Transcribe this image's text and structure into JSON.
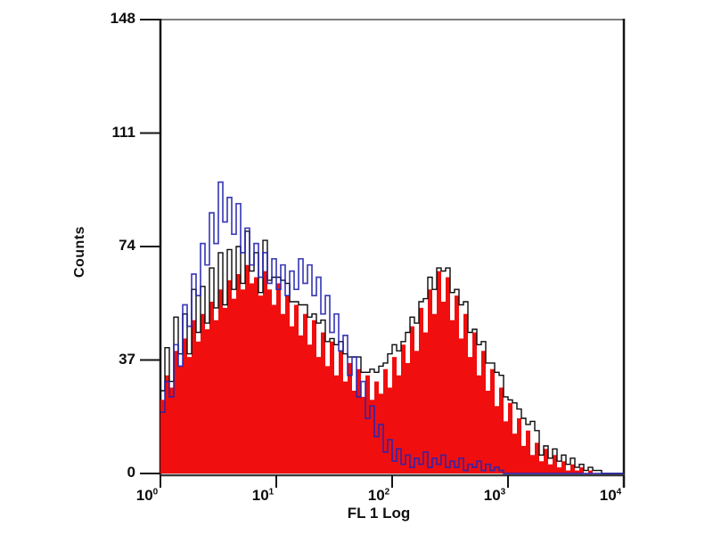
{
  "chart_data": {
    "type": "area",
    "subtype": "flow-cytometry-overlay-histogram",
    "title": "",
    "xlabel": "FL 1 Log",
    "ylabel": "Counts",
    "x_scale": "log10",
    "xlim_log": [
      0,
      4
    ],
    "ylim": [
      0,
      148
    ],
    "grid": false,
    "legend": "none",
    "background": "#ffffff",
    "y_ticks": [
      "0",
      "37",
      "74",
      "111",
      "148"
    ],
    "x_ticks": [
      {
        "base": "10",
        "exp": "0"
      },
      {
        "base": "10",
        "exp": "1"
      },
      {
        "base": "10",
        "exp": "2"
      },
      {
        "base": "10",
        "exp": "3"
      },
      {
        "base": "10",
        "exp": "4"
      }
    ],
    "colors": {
      "red_fill": "#f10e0e",
      "black_outline": "#0a0a0a",
      "blue_outline": "#2626b2",
      "axis": "#141414",
      "frame_top": "#7d7d7d",
      "tick_label": "#0d0d0d"
    },
    "series": [
      {
        "name": "red-filled-histogram",
        "style": "filled-step",
        "color": "#f10e0e",
        "values": [
          24,
          32,
          28,
          40,
          35,
          44,
          38,
          50,
          43,
          52,
          47,
          56,
          50,
          60,
          54,
          63,
          57,
          65,
          60,
          68,
          62,
          64,
          58,
          66,
          60,
          55,
          62,
          52,
          58,
          48,
          55,
          45,
          52,
          42,
          50,
          38,
          46,
          35,
          43,
          32,
          40,
          30,
          36,
          27,
          34,
          25,
          32,
          24,
          30,
          26,
          34,
          28,
          38,
          32,
          42,
          36,
          48,
          40,
          54,
          46,
          60,
          52,
          66,
          56,
          64,
          50,
          58,
          44,
          52,
          38,
          46,
          32,
          40,
          27,
          34,
          22,
          28,
          17,
          23,
          13,
          18,
          9,
          14,
          6,
          10,
          4,
          8,
          3,
          6,
          2,
          4,
          1,
          3,
          1,
          2,
          0,
          1,
          0,
          0,
          0,
          0,
          0,
          0,
          0
        ]
      },
      {
        "name": "black-outline-histogram",
        "style": "step-line",
        "color": "#0a0a0a",
        "values": [
          27,
          41,
          30,
          51,
          39,
          52,
          39,
          60,
          46,
          61,
          49,
          67,
          54,
          72,
          55,
          73,
          60,
          74,
          62,
          79,
          66,
          72,
          59,
          76,
          63,
          64,
          64,
          63,
          62,
          56,
          56,
          55,
          55,
          51,
          52,
          49,
          50,
          43,
          44,
          42,
          43,
          39,
          38,
          38,
          38,
          33,
          33,
          34,
          33,
          35,
          36,
          39,
          42,
          40,
          43,
          46,
          51,
          49,
          56,
          57,
          64,
          60,
          67,
          66,
          67,
          59,
          60,
          55,
          56,
          46,
          47,
          42,
          43,
          36,
          36,
          33,
          32,
          25,
          24,
          23,
          21,
          18,
          16,
          17,
          14,
          6,
          9,
          5,
          8,
          4,
          6,
          3,
          5,
          2,
          3,
          1,
          2,
          1,
          1,
          0,
          0,
          0,
          0,
          0
        ]
      },
      {
        "name": "blue-outline-histogram",
        "style": "step-line",
        "color": "#2626b2",
        "values": [
          20,
          30,
          25,
          42,
          35,
          55,
          48,
          65,
          58,
          75,
          68,
          85,
          75,
          95,
          82,
          90,
          78,
          88,
          72,
          80,
          68,
          75,
          64,
          72,
          62,
          70,
          60,
          68,
          58,
          66,
          60,
          70,
          62,
          68,
          58,
          64,
          52,
          58,
          46,
          52,
          40,
          45,
          32,
          38,
          25,
          30,
          18,
          22,
          12,
          16,
          7,
          11,
          4,
          8,
          3,
          6,
          2,
          5,
          3,
          7,
          2,
          5,
          3,
          6,
          2,
          4,
          2,
          5,
          1,
          3,
          2,
          4,
          1,
          3,
          1,
          2,
          1,
          0,
          0,
          0,
          0,
          0,
          0,
          0,
          0,
          0,
          0,
          0,
          0,
          0,
          0,
          0,
          0,
          0,
          0,
          0,
          0,
          0,
          0,
          0,
          0,
          0,
          0,
          0
        ]
      }
    ]
  }
}
